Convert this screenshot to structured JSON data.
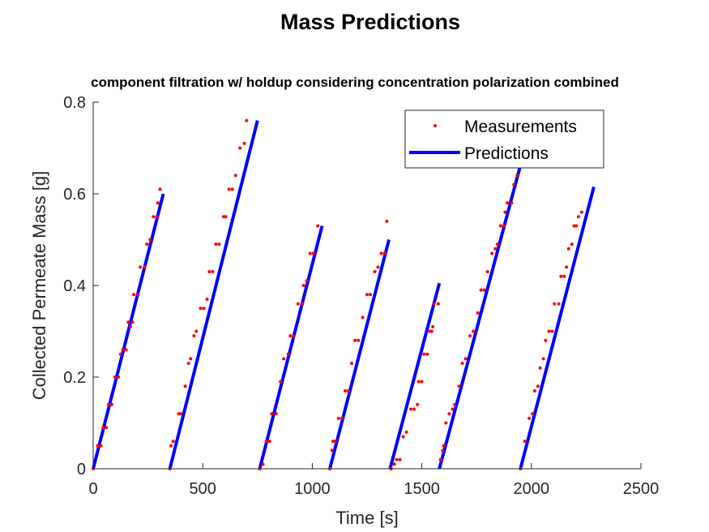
{
  "chart_data": {
    "type": "scatter",
    "title": "Mass Predictions",
    "subtitle": "component filtration w/ holdup considering concentration polarization combined",
    "xlabel": "Time [s]",
    "ylabel": "Collected Permeate Mass [g]",
    "xlim": [
      0,
      2500
    ],
    "ylim": [
      0,
      0.8
    ],
    "xticks": [
      0,
      500,
      1000,
      1500,
      2000,
      2500
    ],
    "yticks": [
      0,
      0.2,
      0.4,
      0.6,
      0.8
    ],
    "xtick_labels": [
      "0",
      "500",
      "1000",
      "1500",
      "2000",
      "2500"
    ],
    "ytick_labels": [
      "0",
      "0.2",
      "0.4",
      "0.6",
      "0.8"
    ],
    "legend": {
      "placement": "top-right",
      "entries": [
        "Measurements",
        "Predictions"
      ]
    },
    "colors": {
      "measurements": "#ff0000",
      "predictions": "#0000ff"
    },
    "series": [
      {
        "name": "Measurements",
        "kind": "points",
        "points": [
          [
            0,
            0
          ],
          [
            20,
            0.05
          ],
          [
            35,
            0.05
          ],
          [
            45,
            0.09
          ],
          [
            60,
            0.09
          ],
          [
            70,
            0.14
          ],
          [
            85,
            0.14
          ],
          [
            100,
            0.2
          ],
          [
            115,
            0.2
          ],
          [
            125,
            0.25
          ],
          [
            135,
            0.26
          ],
          [
            150,
            0.26
          ],
          [
            160,
            0.32
          ],
          [
            170,
            0.31
          ],
          [
            180,
            0.32
          ],
          [
            185,
            0.38
          ],
          [
            205,
            0.38
          ],
          [
            215,
            0.44
          ],
          [
            235,
            0.44
          ],
          [
            245,
            0.49
          ],
          [
            260,
            0.5
          ],
          [
            275,
            0.55
          ],
          [
            290,
            0.55
          ],
          [
            295,
            0.58
          ],
          [
            305,
            0.61
          ],
          [
            350,
            0
          ],
          [
            355,
            0.05
          ],
          [
            365,
            0.06
          ],
          [
            390,
            0.12
          ],
          [
            400,
            0.12
          ],
          [
            420,
            0.18
          ],
          [
            435,
            0.23
          ],
          [
            445,
            0.24
          ],
          [
            460,
            0.29
          ],
          [
            470,
            0.3
          ],
          [
            490,
            0.35
          ],
          [
            505,
            0.35
          ],
          [
            520,
            0.37
          ],
          [
            530,
            0.43
          ],
          [
            545,
            0.43
          ],
          [
            560,
            0.49
          ],
          [
            575,
            0.49
          ],
          [
            595,
            0.55
          ],
          [
            605,
            0.55
          ],
          [
            620,
            0.61
          ],
          [
            635,
            0.61
          ],
          [
            650,
            0.64
          ],
          [
            670,
            0.7
          ],
          [
            690,
            0.71
          ],
          [
            700,
            0.76
          ],
          [
            760,
            0
          ],
          [
            775,
            0.01
          ],
          [
            790,
            0.06
          ],
          [
            805,
            0.06
          ],
          [
            815,
            0.12
          ],
          [
            835,
            0.12
          ],
          [
            855,
            0.19
          ],
          [
            870,
            0.24
          ],
          [
            890,
            0.25
          ],
          [
            900,
            0.29
          ],
          [
            915,
            0.29
          ],
          [
            935,
            0.36
          ],
          [
            955,
            0.36
          ],
          [
            960,
            0.4
          ],
          [
            975,
            0.41
          ],
          [
            990,
            0.47
          ],
          [
            1005,
            0.47
          ],
          [
            1025,
            0.53
          ],
          [
            1080,
            0
          ],
          [
            1090,
            0.04
          ],
          [
            1095,
            0.06
          ],
          [
            1105,
            0.06
          ],
          [
            1120,
            0.11
          ],
          [
            1135,
            0.11
          ],
          [
            1150,
            0.17
          ],
          [
            1165,
            0.17
          ],
          [
            1180,
            0.23
          ],
          [
            1195,
            0.28
          ],
          [
            1210,
            0.28
          ],
          [
            1230,
            0.33
          ],
          [
            1250,
            0.38
          ],
          [
            1265,
            0.38
          ],
          [
            1285,
            0.43
          ],
          [
            1300,
            0.44
          ],
          [
            1315,
            0.47
          ],
          [
            1330,
            0.47
          ],
          [
            1340,
            0.54
          ],
          [
            1360,
            0
          ],
          [
            1375,
            0.01
          ],
          [
            1385,
            0.02
          ],
          [
            1400,
            0.02
          ],
          [
            1415,
            0.07
          ],
          [
            1430,
            0.08
          ],
          [
            1450,
            0.13
          ],
          [
            1465,
            0.13
          ],
          [
            1480,
            0.14
          ],
          [
            1485,
            0.19
          ],
          [
            1500,
            0.19
          ],
          [
            1510,
            0.25
          ],
          [
            1525,
            0.25
          ],
          [
            1535,
            0.3
          ],
          [
            1550,
            0.31
          ],
          [
            1555,
            0.36
          ],
          [
            1575,
            0.36
          ],
          [
            1545,
            0.3
          ],
          [
            1585,
            0.02
          ],
          [
            1595,
            0.04
          ],
          [
            1600,
            0.05
          ],
          [
            1610,
            0.1
          ],
          [
            1625,
            0.12
          ],
          [
            1640,
            0.13
          ],
          [
            1650,
            0.14
          ],
          [
            1670,
            0.18
          ],
          [
            1685,
            0.23
          ],
          [
            1700,
            0.24
          ],
          [
            1720,
            0.29
          ],
          [
            1735,
            0.3
          ],
          [
            1755,
            0.34
          ],
          [
            1770,
            0.39
          ],
          [
            1785,
            0.39
          ],
          [
            1800,
            0.43
          ],
          [
            1820,
            0.47
          ],
          [
            1835,
            0.48
          ],
          [
            1845,
            0.49
          ],
          [
            1860,
            0.53
          ],
          [
            1875,
            0.53
          ],
          [
            1880,
            0.56
          ],
          [
            1890,
            0.58
          ],
          [
            1910,
            0.58
          ],
          [
            1920,
            0.62
          ],
          [
            1935,
            0.64
          ],
          [
            1950,
            0.66
          ],
          [
            1950,
            0
          ],
          [
            1970,
            0.06
          ],
          [
            1990,
            0.11
          ],
          [
            2005,
            0.12
          ],
          [
            2015,
            0.17
          ],
          [
            2030,
            0.18
          ],
          [
            2040,
            0.22
          ],
          [
            2055,
            0.24
          ],
          [
            2065,
            0.28
          ],
          [
            2080,
            0.3
          ],
          [
            2095,
            0.3
          ],
          [
            2105,
            0.36
          ],
          [
            2125,
            0.36
          ],
          [
            2135,
            0.42
          ],
          [
            2150,
            0.42
          ],
          [
            2160,
            0.44
          ],
          [
            2170,
            0.48
          ],
          [
            2185,
            0.49
          ],
          [
            2195,
            0.53
          ],
          [
            2205,
            0.53
          ],
          [
            2215,
            0.55
          ],
          [
            2230,
            0.56
          ]
        ]
      },
      {
        "name": "Predictions",
        "kind": "segments",
        "segments": [
          [
            [
              0,
              0
            ],
            [
              320,
              0.6
            ]
          ],
          [
            [
              350,
              0
            ],
            [
              750,
              0.76
            ]
          ],
          [
            [
              760,
              0
            ],
            [
              1045,
              0.53
            ]
          ],
          [
            [
              1080,
              0
            ],
            [
              1350,
              0.5
            ]
          ],
          [
            [
              1355,
              0
            ],
            [
              1580,
              0.405
            ]
          ],
          [
            [
              1580,
              0
            ],
            [
              1960,
              0.68
            ]
          ],
          [
            [
              1950,
              0
            ],
            [
              2285,
              0.615
            ]
          ]
        ]
      }
    ]
  }
}
